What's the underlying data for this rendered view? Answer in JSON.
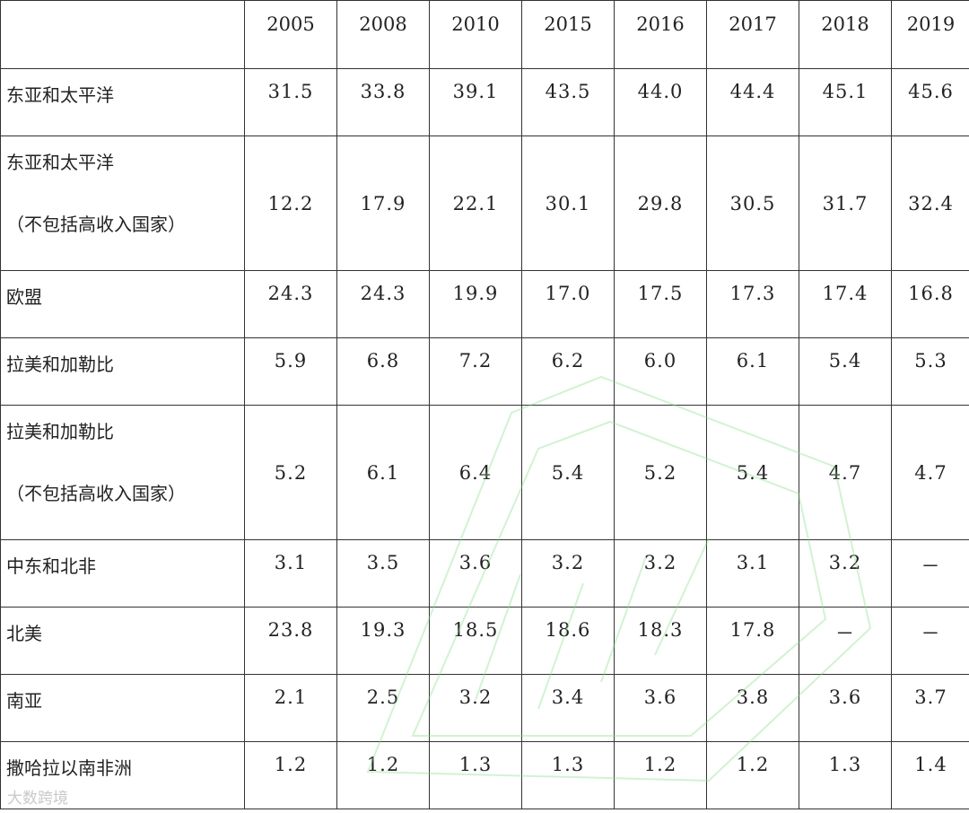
{
  "years": [
    "2005",
    "2008",
    "2010",
    "2015",
    "2016",
    "2017",
    "2018",
    "2019"
  ],
  "rows": [
    {
      "label": "东亚和太平洋",
      "sub": "",
      "values": [
        "31.5",
        "33.8",
        "39.1",
        "43.5",
        "44.0",
        "44.4",
        "45.1",
        "45.6"
      ]
    },
    {
      "label": "东亚和太平洋",
      "sub": "（不包括高收入国家）",
      "values": [
        "12.2",
        "17.9",
        "22.1",
        "30.1",
        "29.8",
        "30.5",
        "31.7",
        "32.4"
      ]
    },
    {
      "label": "欧盟",
      "sub": "",
      "values": [
        "24.3",
        "24.3",
        "19.9",
        "17.0",
        "17.5",
        "17.3",
        "17.4",
        "16.8"
      ]
    },
    {
      "label": "拉美和加勒比",
      "sub": "",
      "values": [
        "5.9",
        "6.8",
        "7.2",
        "6.2",
        "6.0",
        "6.1",
        "5.4",
        "5.3"
      ]
    },
    {
      "label": "拉美和加勒比",
      "sub": "（不包括高收入国家）",
      "values": [
        "5.2",
        "6.1",
        "6.4",
        "5.4",
        "5.2",
        "5.4",
        "4.7",
        "4.7"
      ]
    },
    {
      "label": "中东和北非",
      "sub": "",
      "values": [
        "3.1",
        "3.5",
        "3.6",
        "3.2",
        "3.2",
        "3.1",
        "3.2",
        "－"
      ]
    },
    {
      "label": "北美",
      "sub": "",
      "values": [
        "23.8",
        "19.3",
        "18.5",
        "18.6",
        "18.3",
        "17.8",
        "－",
        "－"
      ]
    },
    {
      "label": "南亚",
      "sub": "",
      "values": [
        "2.1",
        "2.5",
        "3.2",
        "3.4",
        "3.6",
        "3.8",
        "3.6",
        "3.7"
      ]
    },
    {
      "label": "撒哈拉以南非洲",
      "sub": "",
      "values": [
        "1.2",
        "1.2",
        "1.3",
        "1.3",
        "1.2",
        "1.2",
        "1.3",
        "1.4"
      ]
    }
  ],
  "watermark": "大数跨境"
}
